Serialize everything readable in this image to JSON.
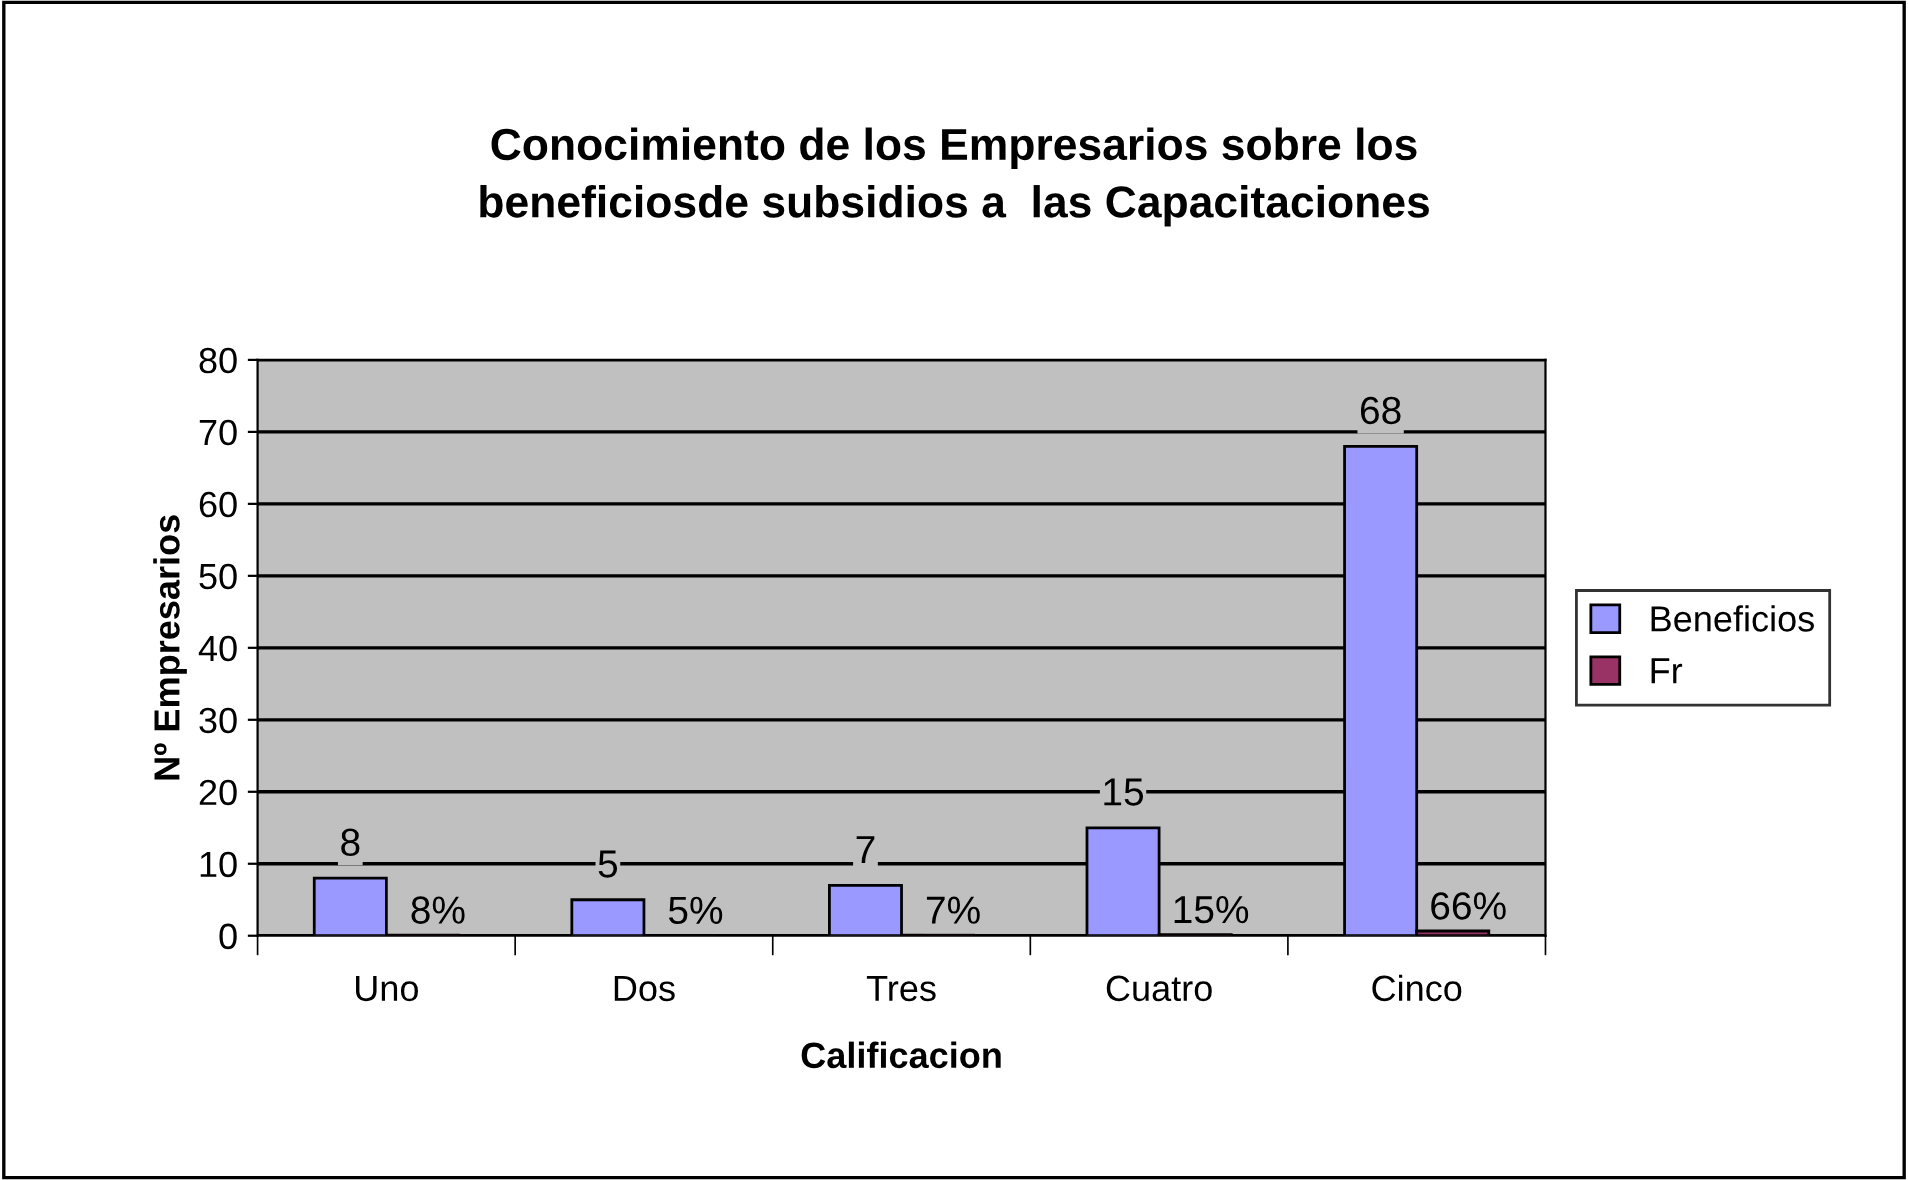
{
  "chart_data": {
    "type": "bar",
    "title": "Conocimiento de los Empresarios sobre los beneficiosde subsidios a  las Capacitaciones",
    "xlabel": "Calificacion",
    "ylabel": "Nº Empresarios",
    "categories": [
      "Uno",
      "Dos",
      "Tres",
      "Cuatro",
      "Cinco"
    ],
    "series": [
      {
        "name": "Beneficios",
        "color": "#9999ff",
        "values": [
          8,
          5,
          7,
          15,
          68
        ],
        "value_labels": [
          "8",
          "5",
          "7",
          "15",
          "68"
        ]
      },
      {
        "name": "Fr",
        "color": "#993366",
        "values": [
          0.08,
          0.05,
          0.07,
          0.15,
          0.66
        ],
        "value_labels": [
          "8%",
          "5%",
          "7%",
          "15%",
          "66%"
        ]
      }
    ],
    "ylim": [
      0,
      80
    ],
    "yticks": [
      0,
      10,
      20,
      30,
      40,
      50,
      60,
      70,
      80
    ],
    "grid": "y",
    "legend": "right"
  }
}
